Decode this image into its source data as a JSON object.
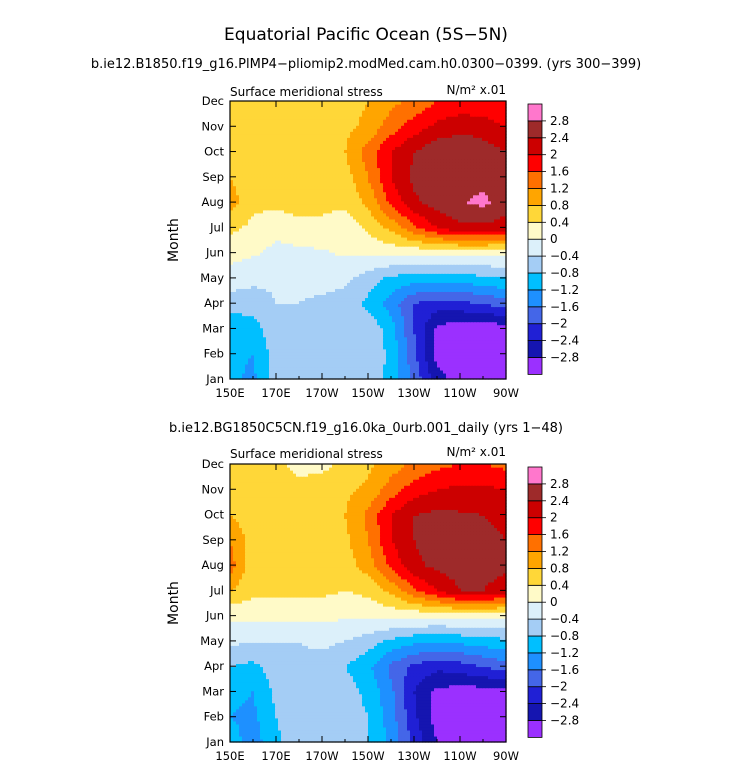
{
  "figure": {
    "title": "Equatorial Pacific Ocean (5S−5N)"
  },
  "colorbar": {
    "levels": [
      -2.8,
      -2.4,
      -2,
      -1.6,
      -1.2,
      -0.8,
      -0.4,
      0,
      0.4,
      0.8,
      1.2,
      1.6,
      2,
      2.4,
      2.8
    ],
    "labels": [
      "−2.8",
      "−2.4",
      "−2",
      "−1.6",
      "−1.2",
      "−0.8",
      "−0.4",
      "0",
      "0.4",
      "0.8",
      "1.2",
      "1.6",
      "2",
      "2.4",
      "2.8"
    ],
    "colors": [
      "#9b30ff",
      "#1515b0",
      "#2020d5",
      "#4466e8",
      "#1e90ff",
      "#00bfff",
      "#a4cdf5",
      "#dcf0fa",
      "#fffac8",
      "#ffd738",
      "#ffa500",
      "#ff7000",
      "#ff0000",
      "#cc0000",
      "#9e2a2a",
      "#ff77cc"
    ]
  },
  "chart_data": [
    {
      "type": "heatmap",
      "title": "b.ie12.B1850.f19_g16.PlMP4−pliomip2.modMed.cam.h0.0300−0399. (yrs 300−399)",
      "left_label": "Surface meridional stress",
      "units": "N/m² x.01",
      "ylabel": "Month",
      "x_ticks": [
        "150E",
        "170E",
        "170W",
        "150W",
        "130W",
        "110W",
        "90W"
      ],
      "y_ticks": [
        "Jan",
        "Feb",
        "Mar",
        "Apr",
        "May",
        "Jun",
        "Jul",
        "Aug",
        "Sep",
        "Oct",
        "Nov",
        "Dec"
      ],
      "x_range": [
        150,
        270
      ],
      "y_range": [
        0,
        11
      ],
      "grid": [
        [
          -1.1,
          -1.3,
          -0.6,
          -0.5,
          -0.5,
          -0.5,
          -0.6,
          -0.9,
          -1.7,
          -2.6,
          -3.0,
          -3.1,
          -3.0
        ],
        [
          -1.1,
          -1.2,
          -0.6,
          -0.5,
          -0.5,
          -0.5,
          -0.5,
          -0.9,
          -1.9,
          -3.0,
          -3.2,
          -3.2,
          -3.1
        ],
        [
          -1.0,
          -1.0,
          -0.5,
          -0.5,
          -0.5,
          -0.4,
          -0.5,
          -1.0,
          -2.0,
          -2.9,
          -3.1,
          -3.1,
          -3.0
        ],
        [
          -0.7,
          -0.6,
          -0.4,
          -0.4,
          -0.5,
          -0.6,
          -0.9,
          -1.4,
          -2.0,
          -2.2,
          -2.1,
          -2.0,
          -1.8
        ],
        [
          -0.1,
          -0.3,
          -0.35,
          -0.3,
          -0.2,
          -0.3,
          -0.6,
          -0.9,
          -1.0,
          -1.0,
          -1.0,
          -0.9,
          -0.8
        ],
        [
          0.1,
          0.05,
          -0.1,
          -0.1,
          -0.05,
          0.05,
          0.1,
          0.1,
          0.1,
          0.1,
          0.1,
          0.1,
          0.1
        ],
        [
          0.5,
          0.3,
          0.1,
          0.25,
          0.3,
          0.1,
          0.5,
          0.9,
          1.5,
          2.0,
          2.3,
          2.3,
          2.2
        ],
        [
          1.0,
          0.5,
          0.5,
          0.6,
          0.5,
          0.5,
          0.9,
          1.7,
          2.3,
          2.6,
          2.75,
          2.9,
          2.6
        ],
        [
          0.8,
          0.5,
          0.5,
          0.5,
          0.5,
          0.6,
          1.2,
          2.0,
          2.5,
          2.7,
          2.7,
          2.65,
          2.6
        ],
        [
          0.6,
          0.5,
          0.5,
          0.5,
          0.6,
          0.8,
          1.4,
          2.0,
          2.4,
          2.7,
          2.7,
          2.6,
          2.4
        ],
        [
          0.5,
          0.5,
          0.5,
          0.5,
          0.6,
          0.7,
          0.9,
          1.4,
          1.8,
          2.1,
          2.3,
          2.2,
          2.0
        ],
        [
          0.5,
          0.5,
          0.5,
          0.5,
          0.5,
          0.6,
          0.8,
          1.1,
          1.3,
          1.6,
          1.7,
          1.7,
          1.6
        ]
      ]
    },
    {
      "type": "heatmap",
      "title": "b.ie12.BG1850C5CN.f19_g16.0ka_0urb.001_daily (yrs 1−48)",
      "left_label": "Surface meridional stress",
      "units": "N/m² x.01",
      "ylabel": "Month",
      "x_ticks": [
        "150E",
        "170E",
        "170W",
        "150W",
        "130W",
        "110W",
        "90W"
      ],
      "y_ticks": [
        "Jan",
        "Feb",
        "Mar",
        "Apr",
        "May",
        "Jun",
        "Jul",
        "Aug",
        "Sep",
        "Oct",
        "Nov",
        "Dec"
      ],
      "x_range": [
        150,
        270
      ],
      "y_range": [
        0,
        11
      ],
      "grid": [
        [
          -1.0,
          -1.4,
          -0.9,
          -0.5,
          -0.5,
          -0.6,
          -0.8,
          -1.3,
          -2.1,
          -2.8,
          -3.0,
          -3.0,
          -2.9
        ],
        [
          -1.2,
          -1.3,
          -0.8,
          -0.5,
          -0.5,
          -0.6,
          -0.8,
          -1.4,
          -2.3,
          -3.0,
          -3.1,
          -3.1,
          -3.0
        ],
        [
          -1.1,
          -1.2,
          -0.7,
          -0.5,
          -0.5,
          -0.6,
          -0.9,
          -1.5,
          -2.4,
          -2.9,
          -3.0,
          -3.0,
          -2.9
        ],
        [
          -0.8,
          -0.9,
          -0.6,
          -0.5,
          -0.6,
          -0.8,
          -1.1,
          -1.7,
          -2.1,
          -2.3,
          -2.2,
          -2.0,
          -1.8
        ],
        [
          -0.3,
          -0.4,
          -0.4,
          -0.4,
          -0.3,
          -0.4,
          -0.6,
          -0.9,
          -1.1,
          -1.2,
          -1.1,
          -1.0,
          -0.9
        ],
        [
          0.1,
          0.1,
          0.1,
          0.15,
          0.1,
          0.05,
          0.1,
          0.1,
          0.1,
          0.1,
          0.1,
          0.1,
          0.1
        ],
        [
          0.8,
          0.5,
          0.5,
          0.5,
          0.5,
          0.4,
          0.5,
          0.9,
          1.5,
          2.0,
          2.4,
          2.4,
          2.2
        ],
        [
          1.4,
          0.5,
          0.5,
          0.6,
          0.6,
          0.6,
          1.0,
          1.7,
          2.3,
          2.5,
          2.6,
          2.55,
          2.5
        ],
        [
          1.2,
          0.6,
          0.6,
          0.6,
          0.6,
          0.7,
          1.2,
          2.0,
          2.4,
          2.6,
          2.5,
          2.5,
          2.4
        ],
        [
          0.8,
          0.5,
          0.5,
          0.5,
          0.6,
          0.8,
          1.3,
          2.0,
          2.4,
          2.5,
          2.45,
          2.4,
          2.3
        ],
        [
          0.5,
          0.5,
          0.5,
          0.5,
          0.6,
          0.7,
          0.9,
          1.4,
          1.8,
          2.0,
          2.1,
          2.1,
          2.0
        ],
        [
          0.5,
          0.5,
          0.5,
          0.3,
          0.3,
          0.5,
          0.7,
          1.0,
          1.3,
          1.5,
          1.6,
          1.6,
          1.5
        ]
      ]
    }
  ]
}
